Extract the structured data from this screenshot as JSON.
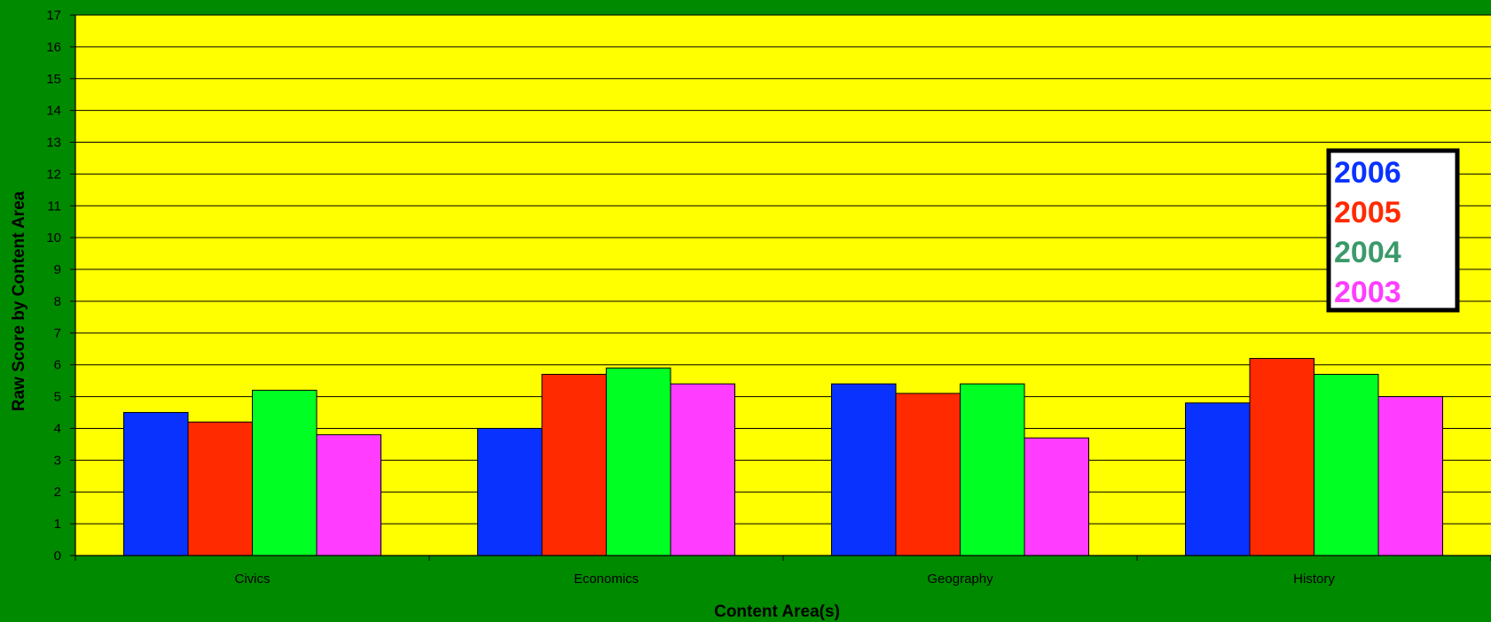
{
  "colors": {
    "background": "#008a00",
    "plot_area": "#ffff00",
    "s2006": "#0a32ff",
    "s2005": "#ff2a00",
    "s2004": "#00ff22",
    "s2003": "#ff3cff",
    "legend_2004_text": "#3a9a6a"
  },
  "chart_data": {
    "type": "bar",
    "title": "",
    "xlabel": "Content Area(s)",
    "ylabel": "Raw Score by Content Area",
    "categories": [
      "Civics",
      "Economics",
      "Geography",
      "History"
    ],
    "ylim": [
      0,
      17
    ],
    "yticks": [
      0,
      1,
      2,
      3,
      4,
      5,
      6,
      7,
      8,
      9,
      10,
      11,
      12,
      13,
      14,
      15,
      16,
      17
    ],
    "grid": true,
    "legend_position": "right",
    "series": [
      {
        "name": "2006",
        "values": [
          4.5,
          4.0,
          5.4,
          4.8
        ]
      },
      {
        "name": "2005",
        "values": [
          4.2,
          5.7,
          5.1,
          6.2
        ]
      },
      {
        "name": "2004",
        "values": [
          5.2,
          5.9,
          5.4,
          5.7
        ]
      },
      {
        "name": "2003",
        "values": [
          3.8,
          5.4,
          3.7,
          5.0
        ]
      }
    ]
  }
}
